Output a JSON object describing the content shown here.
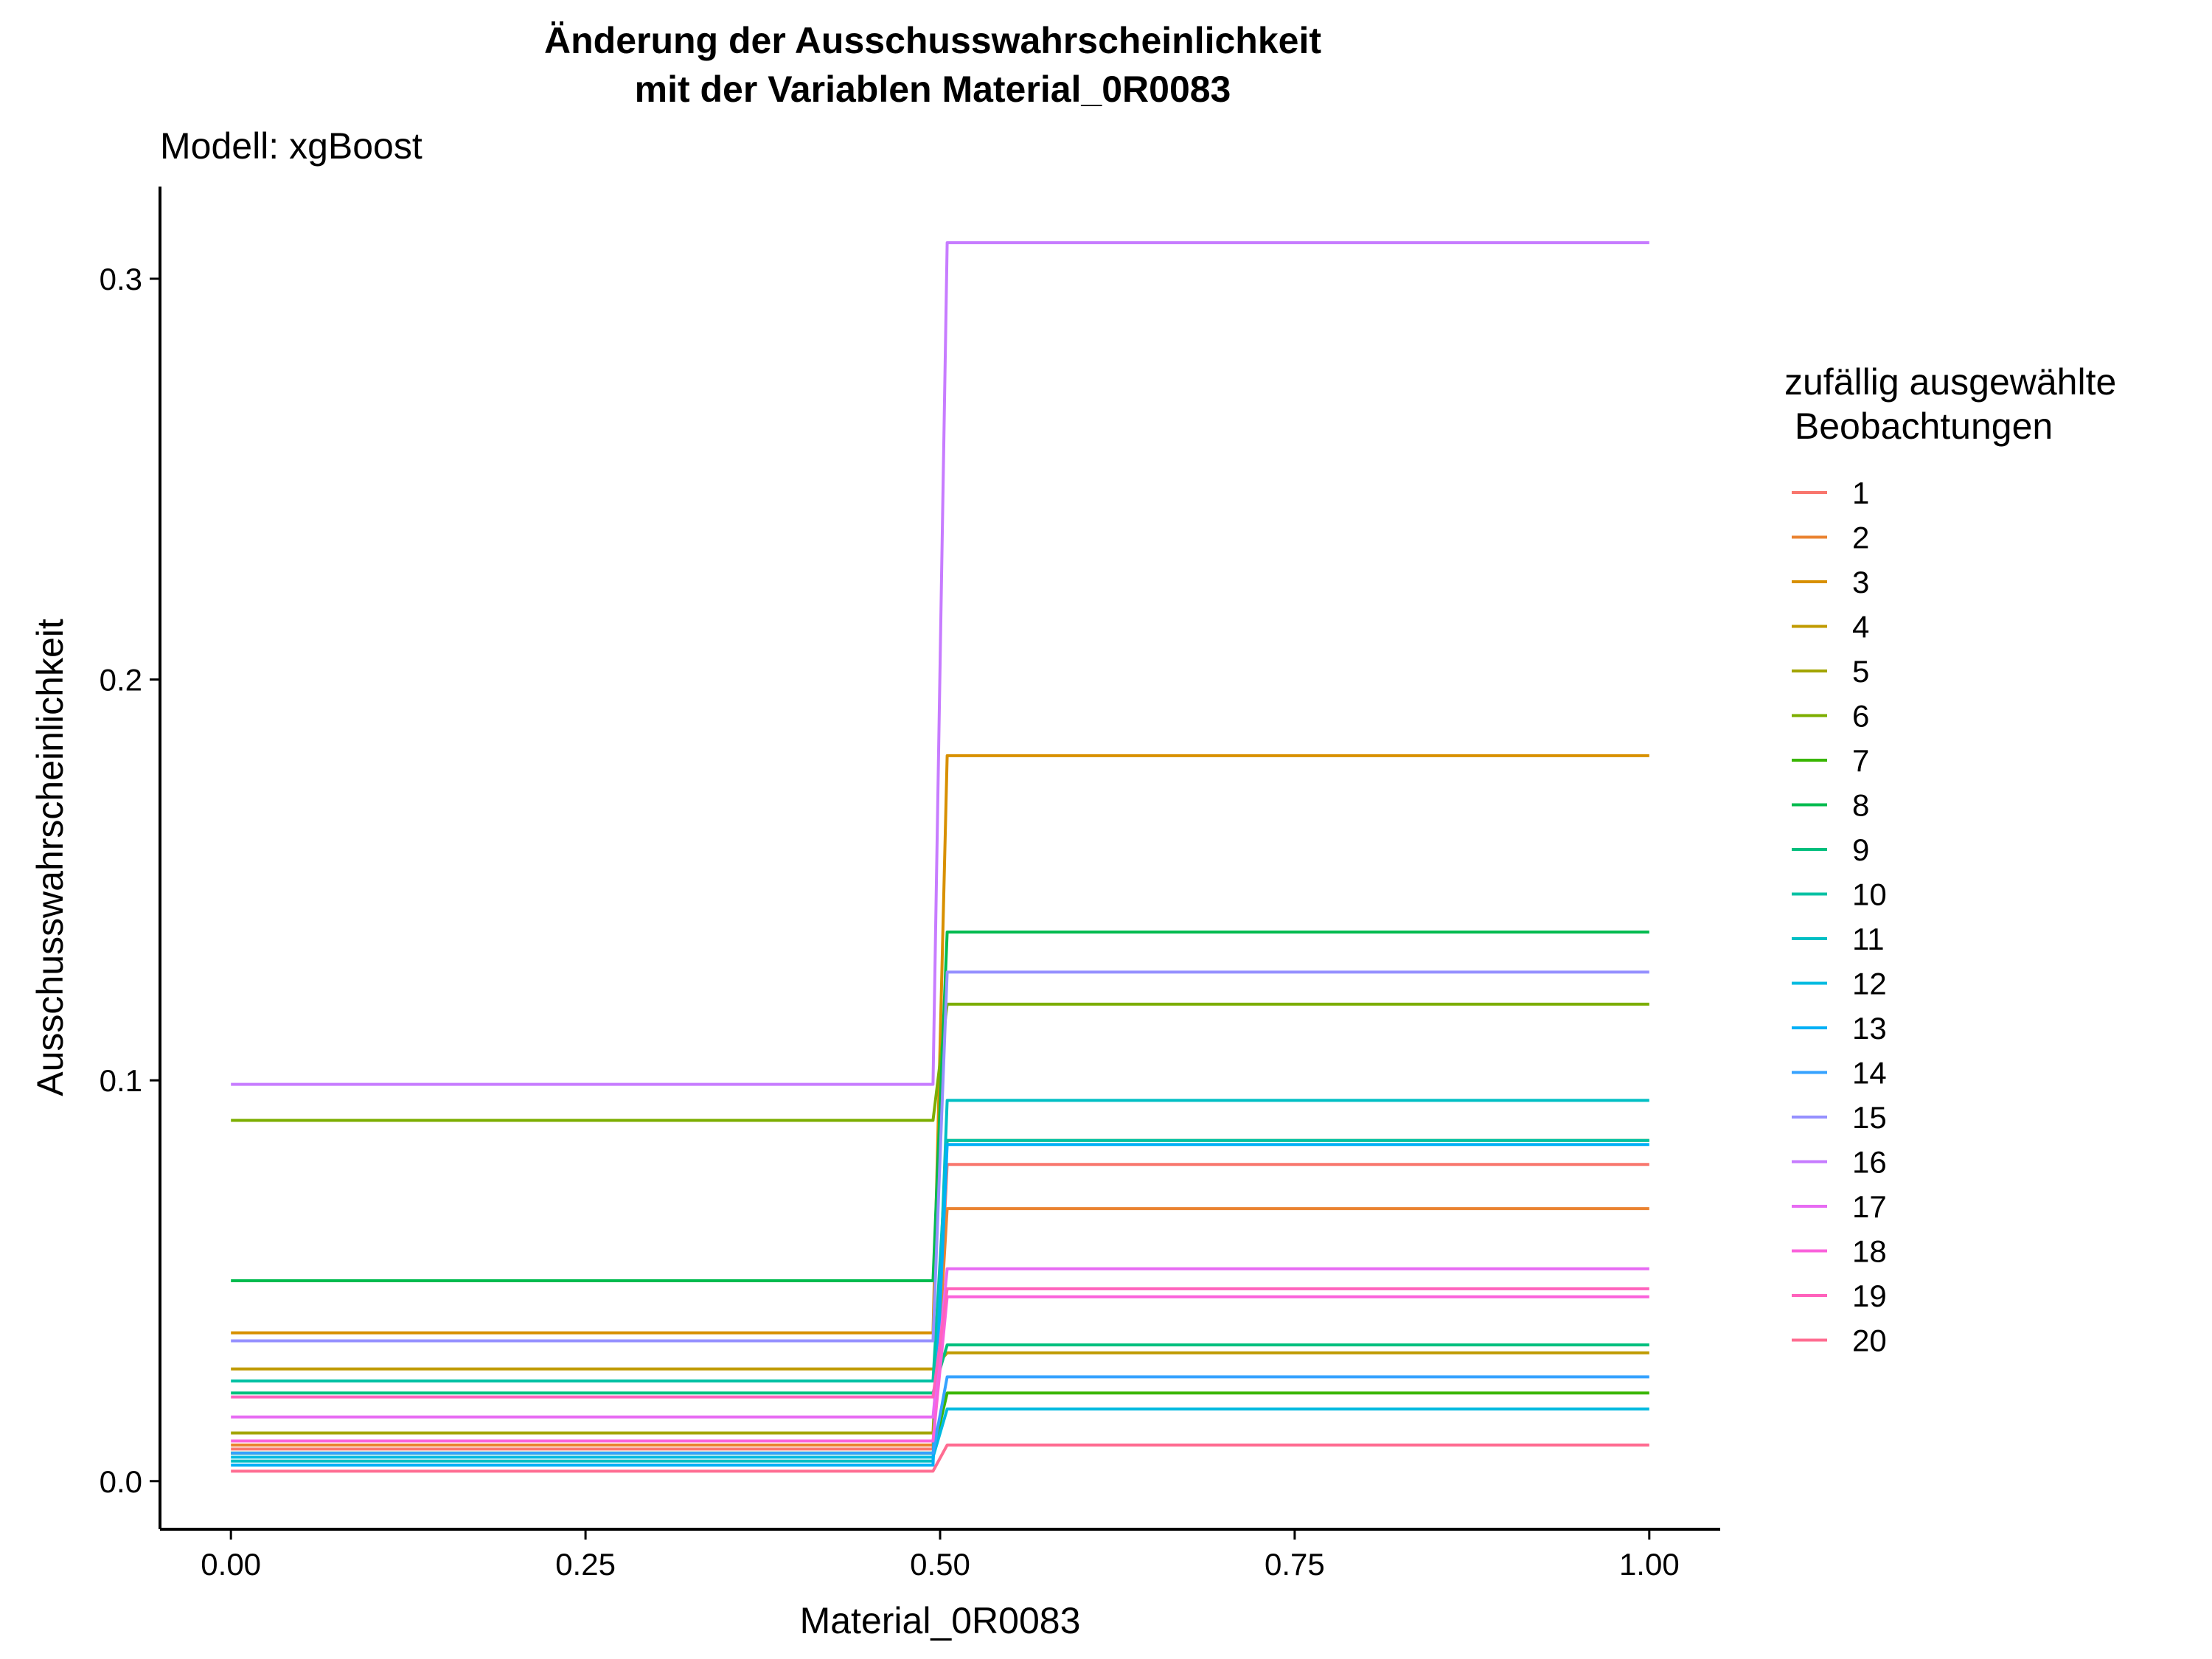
{
  "chart_data": {
    "type": "line",
    "title_line1": "Änderung der Ausschusswahrscheinlichkeit",
    "title_line2": "mit der Variablen Material_0R0083",
    "subtitle": "Modell: xgBoost",
    "xlabel": "Material_0R0083",
    "ylabel": "Ausschusswahrscheinlichkeit",
    "xlim": [
      -0.05,
      1.05
    ],
    "ylim": [
      -0.012,
      0.323
    ],
    "xticks": [
      0,
      0.25,
      0.5,
      0.75,
      1
    ],
    "xtick_labels": [
      "0.00",
      "0.25",
      "0.50",
      "0.75",
      "1.00"
    ],
    "yticks": [
      0,
      0.1,
      0.2,
      0.3
    ],
    "ytick_labels": [
      "0.0",
      "0.1",
      "0.2",
      "0.3"
    ],
    "grid": false,
    "legend_position": "right",
    "legend_title_line1": "zufällig ausgewählte",
    "legend_title_line2": " Beobachtungen",
    "x": [
      0,
      0.495,
      0.505,
      1
    ],
    "series": [
      {
        "name": "1",
        "color": "#F8766D",
        "low": 0.008,
        "high": 0.079
      },
      {
        "name": "2",
        "color": "#EA8331",
        "low": 0.009,
        "high": 0.068
      },
      {
        "name": "3",
        "color": "#D89000",
        "low": 0.037,
        "high": 0.181
      },
      {
        "name": "4",
        "color": "#C09B00",
        "low": 0.028,
        "high": 0.032
      },
      {
        "name": "5",
        "color": "#A3A500",
        "low": 0.012,
        "high": 0.085
      },
      {
        "name": "6",
        "color": "#7CAE00",
        "low": 0.09,
        "high": 0.119
      },
      {
        "name": "7",
        "color": "#39B600",
        "low": 0.007,
        "high": 0.022
      },
      {
        "name": "8",
        "color": "#00BB4E",
        "low": 0.05,
        "high": 0.137
      },
      {
        "name": "9",
        "color": "#00BF7D",
        "low": 0.022,
        "high": 0.034
      },
      {
        "name": "10",
        "color": "#00C1A3",
        "low": 0.025,
        "high": 0.085
      },
      {
        "name": "11",
        "color": "#00BFC4",
        "low": 0.005,
        "high": 0.095
      },
      {
        "name": "12",
        "color": "#00BAE0",
        "low": 0.006,
        "high": 0.018
      },
      {
        "name": "13",
        "color": "#00B0F6",
        "low": 0.004,
        "high": 0.084
      },
      {
        "name": "14",
        "color": "#35A2FF",
        "low": 0.007,
        "high": 0.026
      },
      {
        "name": "15",
        "color": "#9590FF",
        "low": 0.035,
        "high": 0.127
      },
      {
        "name": "16",
        "color": "#C77CFF",
        "low": 0.099,
        "high": 0.309
      },
      {
        "name": "17",
        "color": "#E76BF3",
        "low": 0.016,
        "high": 0.053
      },
      {
        "name": "18",
        "color": "#FA62DB",
        "low": 0.01,
        "high": 0.046
      },
      {
        "name": "19",
        "color": "#FF62BC",
        "low": 0.021,
        "high": 0.048
      },
      {
        "name": "20",
        "color": "#FF6C91",
        "low": 0.0025,
        "high": 0.009
      }
    ]
  }
}
